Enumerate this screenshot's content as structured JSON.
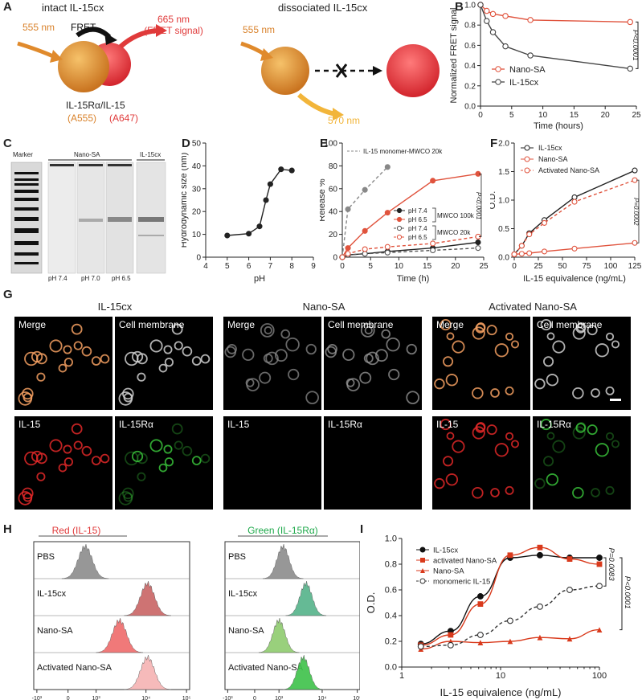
{
  "panels": {
    "A": "A",
    "B": "B",
    "C": "C",
    "D": "D",
    "E": "E",
    "F": "F",
    "G": "G",
    "H": "H",
    "I": "I"
  },
  "panel_a": {
    "intact_title": "intact IL-15cx",
    "dissociated_title": "dissociated IL-15cx",
    "excite_left": "555 nm",
    "fret": "FRET",
    "emit_665": "665 nm",
    "fret_signal": "(FRET signal)",
    "excite_right": "555 nm",
    "emit_570": "570 nm",
    "complex_name": "IL-15Rα/IL-15",
    "dye_a555": "(A555)",
    "dye_a647": "(A647)",
    "colors": {
      "orange": "#e08a2c",
      "red": "#e03a3a",
      "yellow": "#f2b53a"
    }
  },
  "panel_c": {
    "marker": "Marker",
    "nano_sa": "Nano-SA",
    "il15cx": "IL-15cx",
    "ph74": "pH 7.4",
    "ph70": "pH 7.0",
    "ph65": "pH 6.5"
  },
  "panel_g": {
    "titles": [
      "IL-15cx",
      "Nano-SA",
      "Activated Nano-SA"
    ],
    "labels": {
      "merge": "Merge",
      "membrane": "Cell membrane",
      "il15": "IL-15",
      "il15ra": "IL-15Rα"
    }
  },
  "panel_h": {
    "red_title": "Red (IL-15)",
    "green_title": "Green (IL-15Rα)",
    "rows": [
      "PBS",
      "IL-15cx",
      "Nano-SA",
      "Activated Nano-SA"
    ],
    "ticks": [
      "-10³",
      "0",
      "10³",
      "10⁴",
      "10⁵"
    ],
    "red_colors": [
      "#8c8c8c",
      "#c96464",
      "#ef6b6b",
      "#f6b3b3"
    ],
    "green_colors": [
      "#8c8c8c",
      "#55b38a",
      "#8fcc6e",
      "#3ec24a"
    ]
  },
  "chart_data": [
    {
      "id": "B",
      "type": "line",
      "xlabel": "Time (hours)",
      "ylabel": "Normalized FRET signal",
      "xlim": [
        0,
        25
      ],
      "ylim": [
        0,
        1.0
      ],
      "xticks": [
        0,
        5,
        10,
        15,
        20,
        25
      ],
      "yticks": [
        0,
        0.2,
        0.4,
        0.6,
        0.8,
        1.0
      ],
      "series": [
        {
          "name": "Nano-SA",
          "color": "#e0533d",
          "x": [
            0,
            1,
            2,
            4,
            8,
            24
          ],
          "y": [
            1.0,
            0.94,
            0.91,
            0.89,
            0.85,
            0.83
          ]
        },
        {
          "name": "IL-15cx",
          "color": "#444444",
          "x": [
            0,
            1,
            2,
            4,
            8,
            24
          ],
          "y": [
            1.0,
            0.84,
            0.73,
            0.59,
            0.5,
            0.37
          ]
        }
      ],
      "annotation": "P<0.0001"
    },
    {
      "id": "D",
      "type": "line",
      "xlabel": "pH",
      "ylabel": "Hydrodynamic size (nm)",
      "xlim": [
        4,
        9
      ],
      "ylim": [
        0,
        50
      ],
      "xticks": [
        4,
        5,
        6,
        7,
        8,
        9
      ],
      "yticks": [
        0,
        10,
        20,
        30,
        40,
        50
      ],
      "series": [
        {
          "name": "size",
          "color": "#222222",
          "x": [
            5,
            6,
            6.5,
            6.8,
            7,
            7.5,
            8
          ],
          "y": [
            9.5,
            10.3,
            13.5,
            25,
            32,
            38.5,
            38
          ]
        }
      ]
    },
    {
      "id": "E",
      "type": "line",
      "xlabel": "Time (h)",
      "ylabel": "Release %",
      "xlim": [
        0,
        25
      ],
      "ylim": [
        0,
        100
      ],
      "xticks": [
        0,
        5,
        10,
        15,
        20,
        25
      ],
      "yticks": [
        0,
        20,
        40,
        60,
        80,
        100
      ],
      "series": [
        {
          "name": "IL-15 monomer-MWCO 20k",
          "color": "#888888",
          "dash": true,
          "x": [
            0,
            1,
            4,
            8
          ],
          "y": [
            0,
            42,
            59,
            79
          ]
        },
        {
          "name": "pH 7.4",
          "color": "#222222",
          "x": [
            0,
            1,
            4,
            8,
            16,
            24
          ],
          "y": [
            0,
            2,
            3,
            5,
            8,
            13
          ]
        },
        {
          "name": "pH 6.5",
          "color": "#e0533d",
          "x": [
            0,
            1,
            4,
            8,
            16,
            24
          ],
          "y": [
            0,
            8,
            23,
            39,
            67,
            73
          ]
        },
        {
          "name": "pH 7.4",
          "color": "#555555",
          "dash": true,
          "open": true,
          "x": [
            0,
            1,
            4,
            8,
            16,
            24
          ],
          "y": [
            0,
            2,
            3,
            4,
            6,
            8
          ]
        },
        {
          "name": "pH 6.5",
          "color": "#e0533d",
          "dash": true,
          "open": true,
          "x": [
            0,
            1,
            4,
            8,
            16,
            24
          ],
          "y": [
            0,
            3,
            7,
            9,
            12,
            18
          ]
        }
      ],
      "group_labels": [
        "MWCO 100k",
        "MWCO 20k"
      ],
      "annotation": "P<0.0001"
    },
    {
      "id": "F",
      "type": "line",
      "xlabel": "IL-15 equivalence (ng/mL)",
      "ylabel": "O.D.",
      "xlim": [
        0,
        125
      ],
      "ylim": [
        0,
        2.0
      ],
      "xticks": [
        0,
        25,
        50,
        75,
        100,
        125
      ],
      "yticks": [
        0,
        0.5,
        1.0,
        1.5,
        2.0
      ],
      "series": [
        {
          "name": "IL-15cx",
          "color": "#222222",
          "x": [
            0,
            7.8,
            15.6,
            31.25,
            62.5,
            125
          ],
          "y": [
            0.05,
            0.2,
            0.42,
            0.65,
            1.05,
            1.52
          ]
        },
        {
          "name": "Nano-SA",
          "color": "#e0533d",
          "x": [
            0,
            7.8,
            15.6,
            31.25,
            62.5,
            125
          ],
          "y": [
            0.05,
            0.06,
            0.07,
            0.1,
            0.15,
            0.25
          ]
        },
        {
          "name": "Activated Nano-SA",
          "color": "#e0533d",
          "dash": true,
          "x": [
            0,
            7.8,
            15.6,
            31.25,
            62.5,
            125
          ],
          "y": [
            0.05,
            0.2,
            0.4,
            0.6,
            0.97,
            1.35
          ]
        }
      ],
      "annotation": "P=0.0002"
    },
    {
      "id": "I",
      "type": "line",
      "xlabel": "IL-15 equivalence (ng/mL)",
      "ylabel": "O.D.",
      "xscale": "log",
      "xlim": [
        1,
        100
      ],
      "ylim": [
        0.0,
        1.0
      ],
      "xticks": [
        1,
        10,
        100
      ],
      "yticks": [
        0.0,
        0.2,
        0.4,
        0.6,
        0.8,
        1.0
      ],
      "series": [
        {
          "name": "IL-15cx",
          "color": "#111111",
          "marker": "circle",
          "x": [
            1.56,
            3.125,
            6.25,
            12.5,
            25,
            50,
            100
          ],
          "y": [
            0.18,
            0.28,
            0.55,
            0.85,
            0.87,
            0.85,
            0.85
          ]
        },
        {
          "name": "activated Nano-SA",
          "color": "#d93a1c",
          "marker": "square",
          "x": [
            1.56,
            3.125,
            6.25,
            12.5,
            25,
            50,
            100
          ],
          "y": [
            0.17,
            0.25,
            0.49,
            0.87,
            0.93,
            0.84,
            0.8
          ]
        },
        {
          "name": "Nano-SA",
          "color": "#d93a1c",
          "marker": "triangle",
          "x": [
            1.56,
            3.125,
            6.25,
            12.5,
            25,
            50,
            100
          ],
          "y": [
            0.14,
            0.2,
            0.19,
            0.2,
            0.23,
            0.22,
            0.29
          ]
        },
        {
          "name": "monomeric IL-15",
          "color": "#333333",
          "marker": "open",
          "dash": true,
          "x": [
            1.56,
            3.125,
            6.25,
            12.5,
            25,
            50,
            100
          ],
          "y": [
            0.16,
            0.17,
            0.25,
            0.36,
            0.47,
            0.6,
            0.63
          ]
        }
      ],
      "annotations": [
        "P=0.0083",
        "P<0.0001"
      ]
    }
  ]
}
